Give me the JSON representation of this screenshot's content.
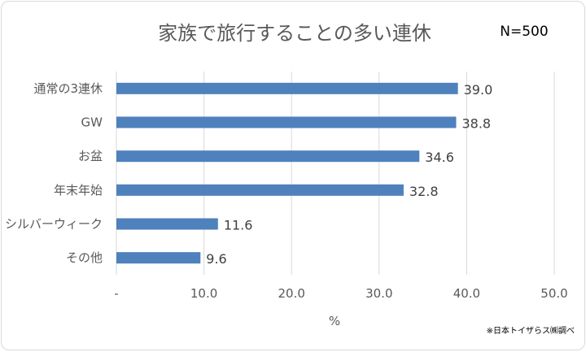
{
  "chart_data": {
    "type": "bar",
    "orientation": "horizontal",
    "title": "家族で旅行することの多い連休",
    "sample_label": "N=500",
    "categories": [
      "通常の3連休",
      "GW",
      "お盆",
      "年末年始",
      "シルバーウィーク",
      "その他"
    ],
    "values": [
      39.0,
      38.8,
      34.6,
      32.8,
      11.6,
      9.6
    ],
    "data_labels": [
      "39.0",
      "38.8",
      "34.6",
      "32.8",
      "11.6",
      "9.6"
    ],
    "xlim": [
      0,
      50
    ],
    "x_ticks": [
      0,
      10,
      20,
      30,
      40,
      50
    ],
    "x_tick_labels": [
      "-",
      "10.0",
      "20.0",
      "30.0",
      "40.0",
      "50.0"
    ],
    "xlabel": "%",
    "ylabel": "",
    "grid": "vertical",
    "bar_color": "#4F81BD",
    "source_note": "※日本トイザらス㈱調べ"
  }
}
